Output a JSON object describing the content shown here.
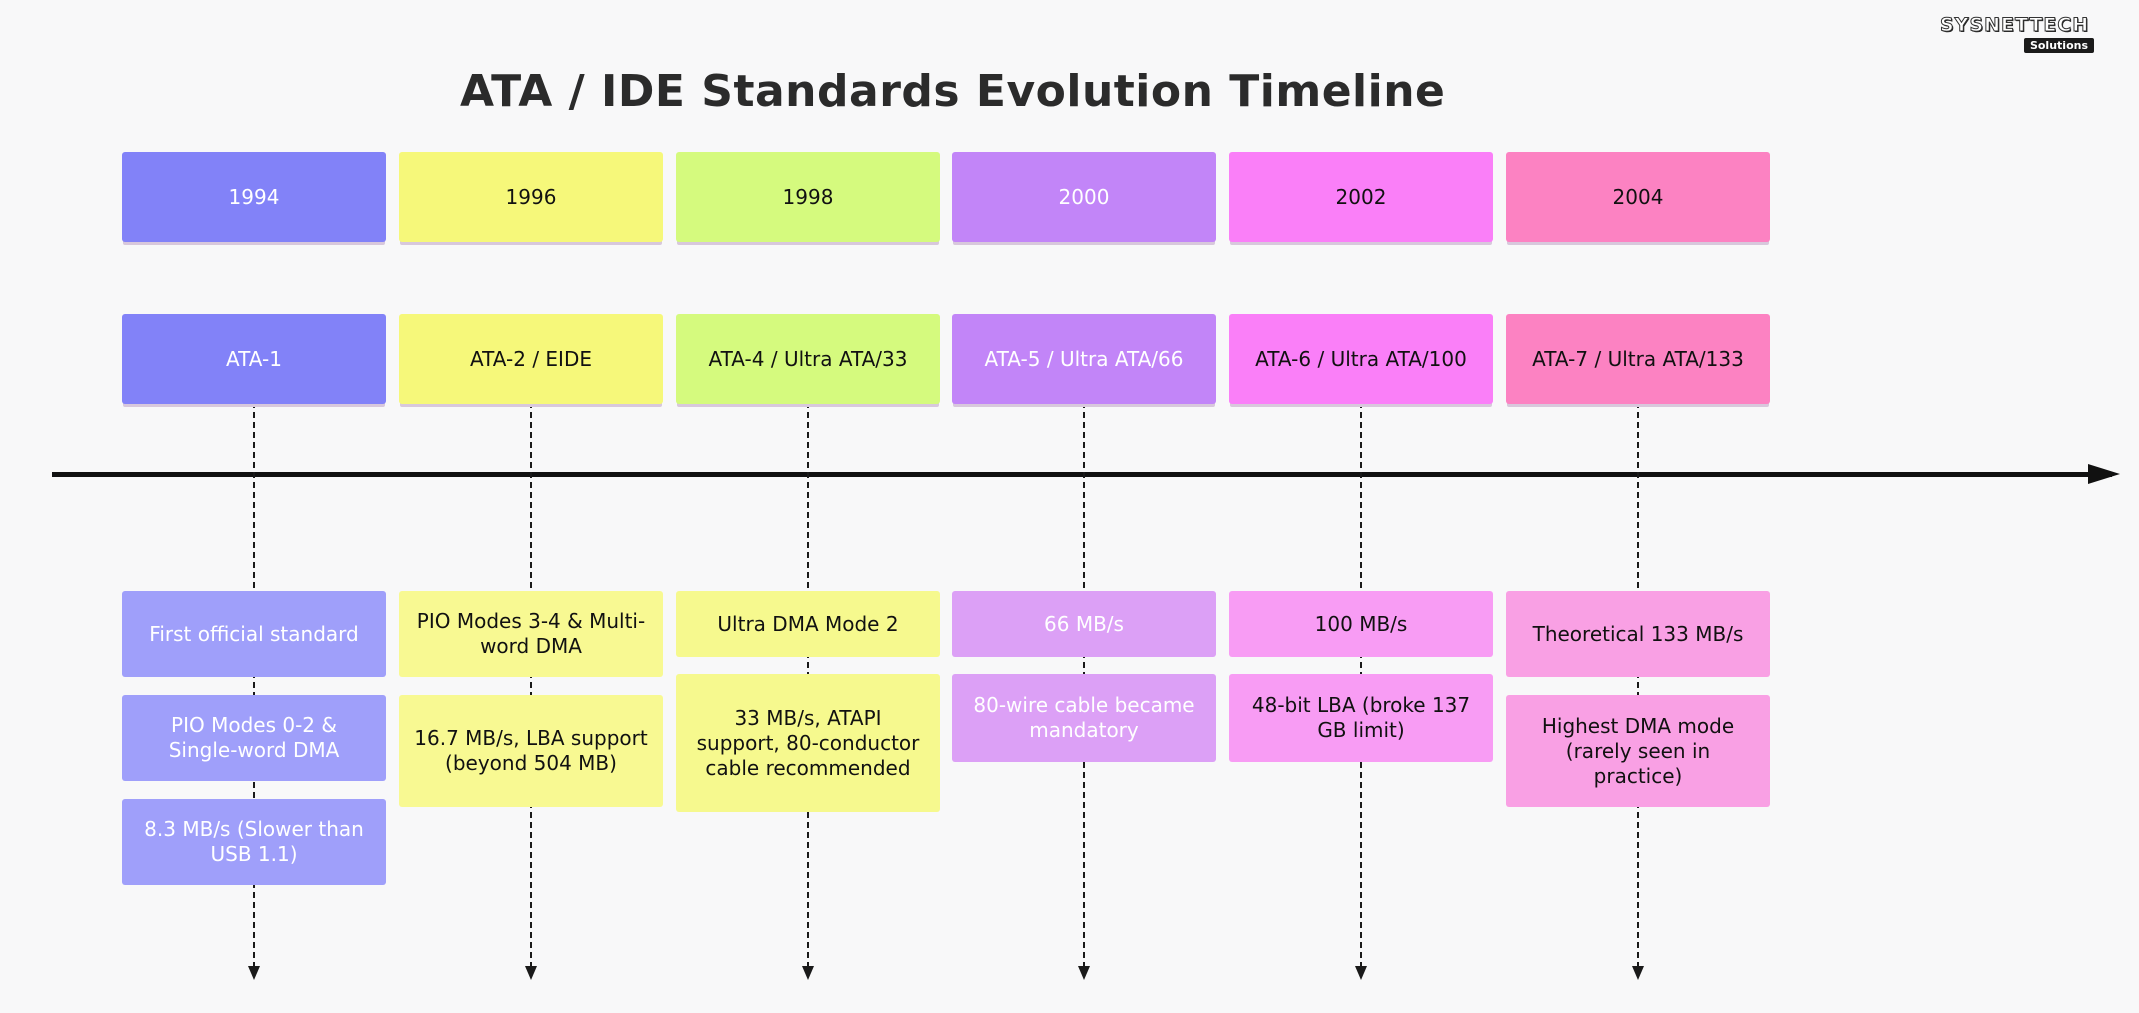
{
  "title": "ATA / IDE Standards Evolution Timeline",
  "logo": {
    "brand": "SYSNETTECH",
    "sub": "Solutions"
  },
  "columns": [
    {
      "year": "1994",
      "name": "ATA-1",
      "color": "#8282f8",
      "detail_color": "#9f9ffa",
      "text": "light",
      "details": [
        "First official standard",
        "PIO Modes 0-2 & Single-word DMA",
        "8.3 MB/s (Slower than USB 1.1)"
      ]
    },
    {
      "year": "1996",
      "name": "ATA-2 / EIDE",
      "color": "#f6f87a",
      "detail_color": "#f8f992",
      "text": "dark",
      "details": [
        "PIO Modes 3-4 & Multi-word DMA",
        "16.7 MB/s, LBA support (beyond 504 MB)"
      ]
    },
    {
      "year": "1998",
      "name": "ATA-4 / Ultra ATA/33",
      "color": "#d5fa7e",
      "detail_color": "#f6f98e",
      "text": "dark",
      "details": [
        "Ultra DMA Mode 2",
        "33 MB/s, ATAPI support, 80-conductor cable recommended"
      ]
    },
    {
      "year": "2000",
      "name": "ATA-5 / Ultra ATA/66",
      "color": "#c285f8",
      "detail_color": "#dca0f6",
      "text": "light",
      "details": [
        "66 MB/s",
        "80-wire cable became mandatory"
      ]
    },
    {
      "year": "2002",
      "name": "ATA-6 / Ultra ATA/100",
      "color": "#fa7ff8",
      "detail_color": "#f89cf4",
      "text": "dark",
      "details": [
        "100 MB/s",
        "48-bit LBA (broke 137 GB limit)"
      ]
    },
    {
      "year": "2004",
      "name": "ATA-7 / Ultra ATA/133",
      "color": "#fc82c2",
      "detail_color": "#f9a0e4",
      "text": "dark",
      "details": [
        "Theoretical 133 MB/s",
        "Highest DMA mode (rarely seen in practice)"
      ]
    }
  ]
}
